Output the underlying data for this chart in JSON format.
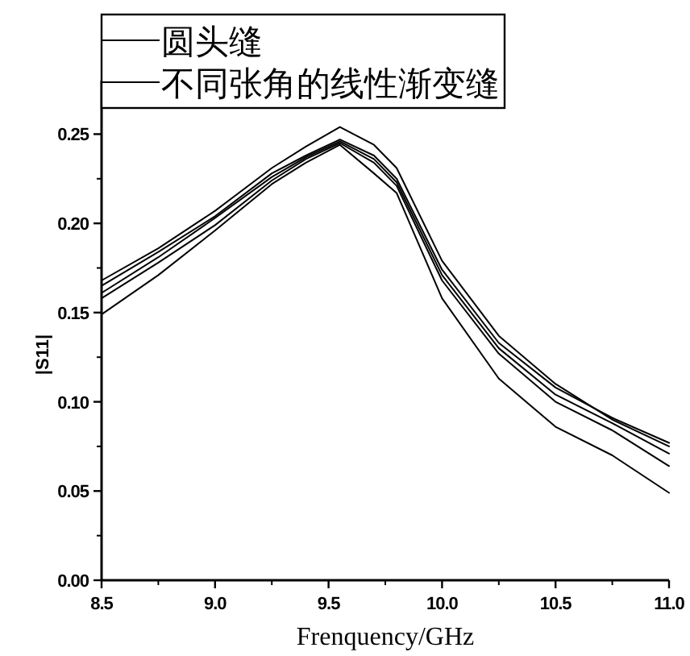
{
  "chart_data": {
    "type": "line",
    "xlabel": "Frenquency/GHz",
    "ylabel": "|S11|",
    "x": [
      8.5,
      8.75,
      9.0,
      9.25,
      9.4,
      9.55,
      9.7,
      9.8,
      10.0,
      10.25,
      10.5,
      10.75,
      11.0
    ],
    "series": [
      {
        "name": "圆头缝",
        "color": "#000000",
        "values": [
          0.168,
          0.186,
          0.207,
          0.231,
          0.243,
          0.254,
          0.244,
          0.231,
          0.179,
          0.137,
          0.11,
          0.09,
          0.075
        ]
      },
      {
        "name": "不同张角的线性渐变缝",
        "color": "#000000",
        "values": [
          0.165,
          0.184,
          0.204,
          0.228,
          0.238,
          0.247,
          0.238,
          0.225,
          0.174,
          0.133,
          0.108,
          0.091,
          0.077
        ]
      },
      {
        "color": "#000000",
        "values": [
          0.161,
          0.181,
          0.203,
          0.226,
          0.237,
          0.246,
          0.236,
          0.223,
          0.171,
          0.13,
          0.104,
          0.088,
          0.071
        ]
      },
      {
        "color": "#000000",
        "values": [
          0.158,
          0.178,
          0.199,
          0.224,
          0.236,
          0.245,
          0.234,
          0.221,
          0.168,
          0.127,
          0.1,
          0.084,
          0.064
        ]
      },
      {
        "color": "#000000",
        "values": [
          0.149,
          0.171,
          0.196,
          0.222,
          0.234,
          0.244,
          0.228,
          0.217,
          0.158,
          0.113,
          0.086,
          0.07,
          0.049
        ]
      }
    ],
    "xlim": [
      8.5,
      11.0
    ],
    "ylim": [
      0,
      0.28
    ],
    "xticks": [
      8.5,
      {
        "value": 9.0,
        "label": "9.0"
      },
      9.5,
      {
        "value": 10.0,
        "label": "10.0"
      },
      10.5,
      {
        "value": 11.0,
        "label": "11.0"
      }
    ],
    "yticks": [
      {
        "value": 0,
        "label": "0.00"
      },
      0.05,
      {
        "value": 0.1,
        "label": "0.10"
      },
      0.15,
      {
        "value": 0.2,
        "label": "0.20"
      },
      0.25
    ],
    "legend": "top left",
    "line_style": "solid",
    "marker": "none",
    "grid": false
  }
}
